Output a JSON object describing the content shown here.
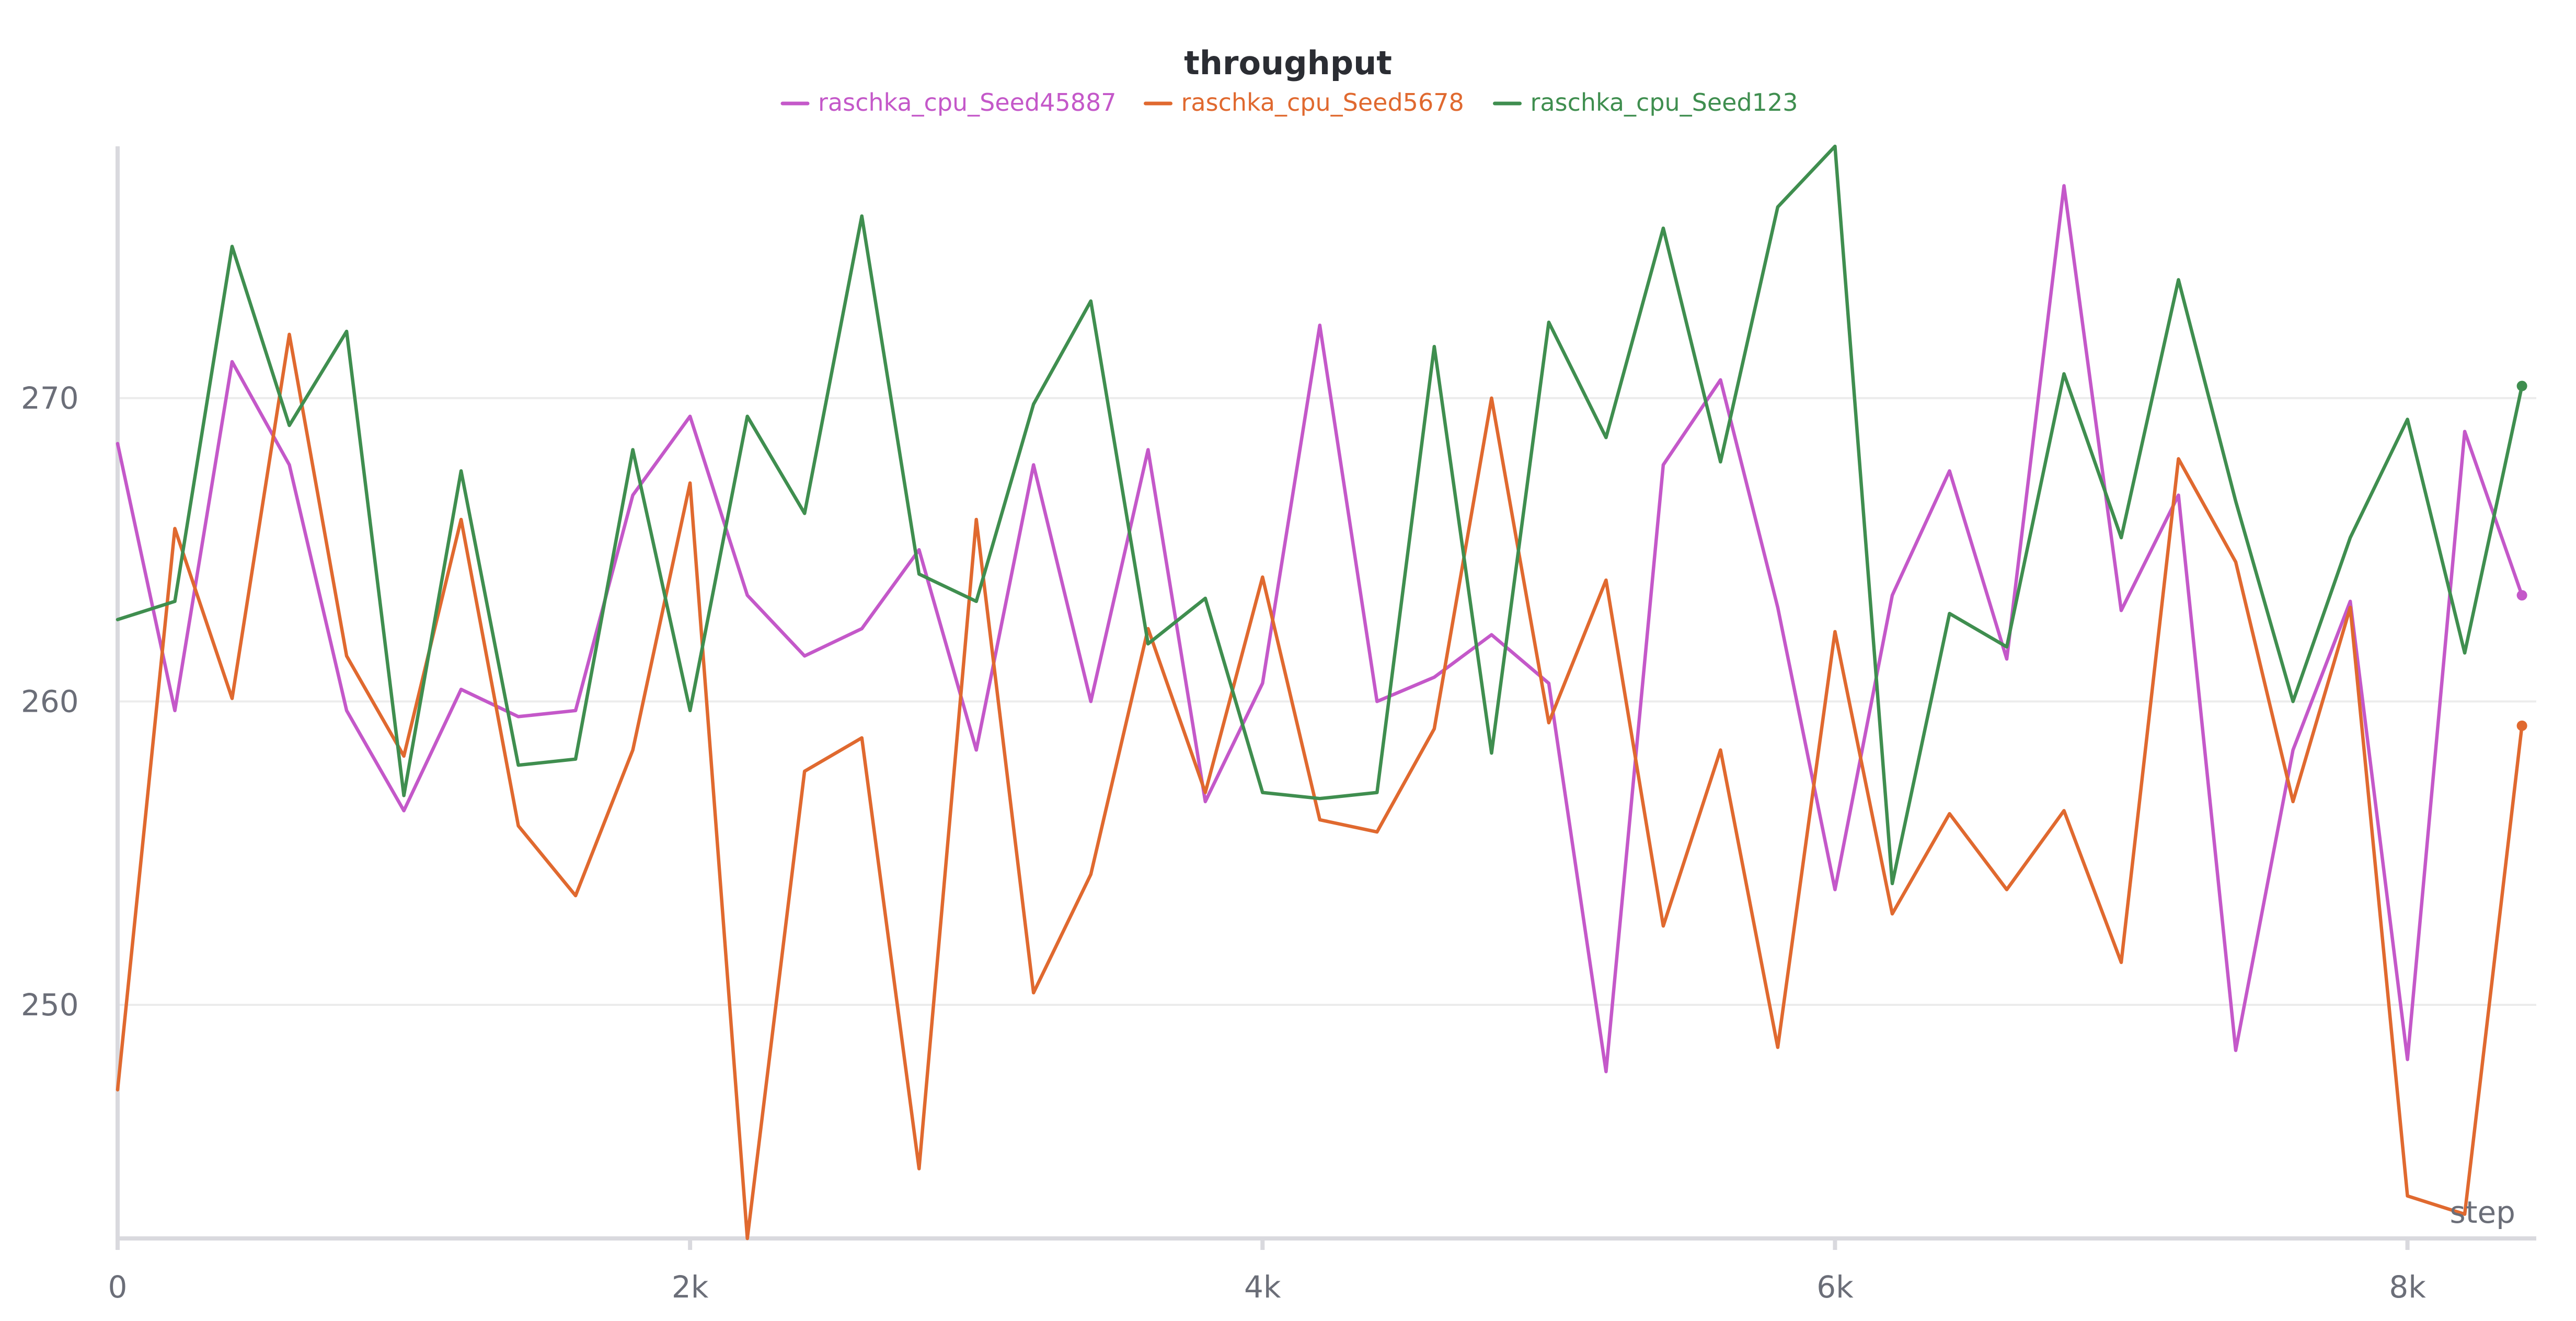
{
  "chart_data": {
    "type": "line",
    "title": "throughput",
    "xlabel": "step",
    "ylabel": "",
    "xlim": [
      0,
      8450
    ],
    "ylim": [
      242.3,
      278.3
    ],
    "xticks": [
      0,
      2000,
      4000,
      6000,
      8000
    ],
    "xtick_labels": [
      "0",
      "2k",
      "4k",
      "6k",
      "8k"
    ],
    "yticks": [
      250,
      260,
      270
    ],
    "ytick_labels": [
      "250",
      "260",
      "270"
    ],
    "grid": true,
    "legend_position": "top-center",
    "x": [
      0,
      200,
      400,
      600,
      800,
      1000,
      1200,
      1400,
      1600,
      1800,
      2000,
      2200,
      2400,
      2600,
      2800,
      3000,
      3200,
      3400,
      3600,
      3800,
      4000,
      4200,
      4400,
      4600,
      4800,
      5000,
      5200,
      5400,
      5600,
      5800,
      6000,
      6200,
      6400,
      6600,
      6800,
      7000,
      7200,
      7400,
      7600,
      7800,
      8000,
      8200,
      8400
    ],
    "series": [
      {
        "name": "raschka_cpu_Seed45887",
        "color": "#c458c9",
        "values": [
          268.5,
          259.7,
          271.2,
          267.8,
          259.7,
          256.4,
          260.4,
          259.5,
          259.7,
          266.8,
          269.4,
          263.5,
          261.5,
          262.4,
          265.0,
          258.4,
          267.8,
          260.0,
          268.3,
          256.7,
          260.6,
          272.4,
          260.0,
          260.8,
          262.2,
          260.6,
          247.8,
          267.8,
          270.6,
          263.1,
          253.8,
          263.5,
          267.6,
          261.4,
          277.0,
          263.0,
          266.8,
          248.5,
          258.4,
          263.3,
          248.2,
          268.9,
          263.5
        ]
      },
      {
        "name": "raschka_cpu_Seed5678",
        "color": "#e0692f",
        "values": [
          247.2,
          265.7,
          260.1,
          272.1,
          261.5,
          258.2,
          266.0,
          255.9,
          253.6,
          258.4,
          267.2,
          242.3,
          257.7,
          258.8,
          244.6,
          266.0,
          250.4,
          254.3,
          262.4,
          257.0,
          264.1,
          256.1,
          255.7,
          259.1,
          270.0,
          259.3,
          264.0,
          252.6,
          258.4,
          248.6,
          262.3,
          253.0,
          256.3,
          253.8,
          256.4,
          251.4,
          268.0,
          264.6,
          256.7,
          263.1,
          243.7,
          243.1,
          259.2
        ]
      },
      {
        "name": "raschka_cpu_Seed123",
        "color": "#3f8e4f",
        "values": [
          262.7,
          263.3,
          275.0,
          269.1,
          272.2,
          256.9,
          267.6,
          257.9,
          258.1,
          268.3,
          259.7,
          269.4,
          266.2,
          276.0,
          264.2,
          263.3,
          269.8,
          273.2,
          261.9,
          263.4,
          257.0,
          256.8,
          257.0,
          271.7,
          258.3,
          272.5,
          268.7,
          275.6,
          267.9,
          276.3,
          278.3,
          254.0,
          262.9,
          261.8,
          270.8,
          265.4,
          273.9,
          266.6,
          260.0,
          265.4,
          269.3,
          261.6,
          270.4
        ]
      }
    ]
  }
}
